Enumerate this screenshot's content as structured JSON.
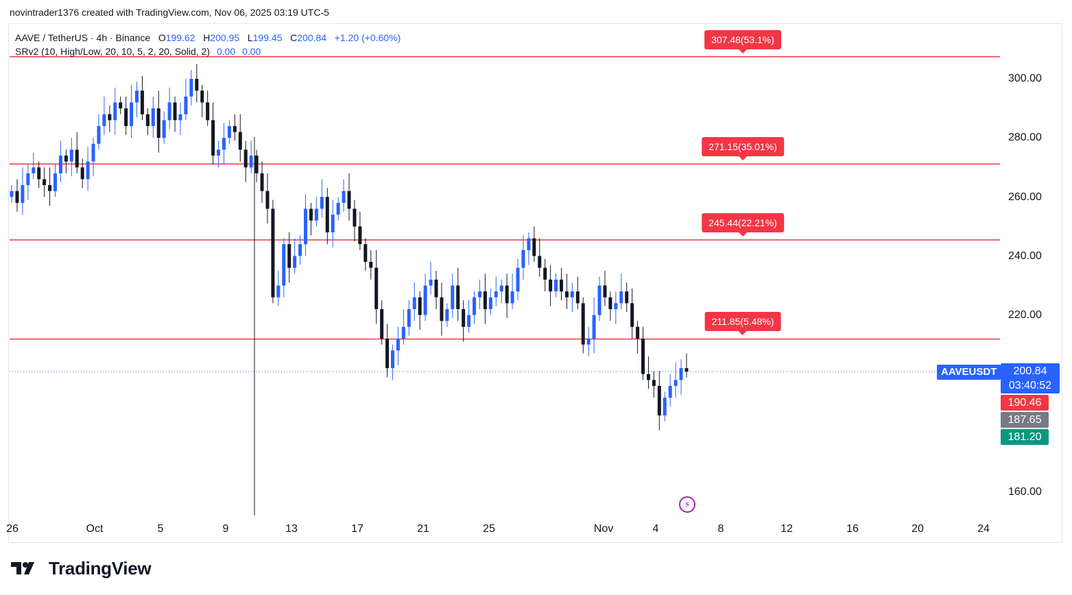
{
  "header": {
    "caption": "novintrader1376 created with TradingView.com, Nov 06, 2025 03:19 UTC-5"
  },
  "legend": {
    "symbol_line": "AAVE / TetherUS · 4h · Binance",
    "o_label": "O",
    "o_value": "199.62",
    "h_label": "H",
    "h_value": "200.95",
    "l_label": "L",
    "l_value": "199.45",
    "c_label": "C",
    "c_value": "200.84",
    "change": "+1.20 (+0.60%)",
    "indicator": "SRv2 (10, High/Low, 20, 10, 5, 2, 20, Solid, 2)",
    "indicator_v1": "0.00",
    "indicator_v2": "0.00"
  },
  "levels": [
    {
      "price": 307.48,
      "label": "307.48(53.1%)"
    },
    {
      "price": 271.15,
      "label": "271.15(35.01%)"
    },
    {
      "price": 245.44,
      "label": "245.44(22.21%)"
    },
    {
      "price": 211.85,
      "label": "211.85(5.48%)"
    }
  ],
  "price_axis": {
    "ticks": [
      "300.00",
      "280.00",
      "260.00",
      "240.00",
      "220.00",
      "160.00"
    ],
    "symbol_tag": "AAVEUSDT",
    "last_price": "200.84",
    "countdown": "03:40:52",
    "tag_red": "190.46",
    "tag_gray": "187.65",
    "tag_green": "181.20"
  },
  "time_axis": {
    "labels": [
      "26",
      "Oct",
      "5",
      "9",
      "13",
      "17",
      "21",
      "25",
      "Nov",
      "4",
      "8",
      "12",
      "16",
      "20",
      "24"
    ]
  },
  "icons": {
    "lightning": "lightning-icon",
    "brand_logo": "tradingview-logo-icon"
  },
  "colors": {
    "up": "#2962ff",
    "down": "#131722",
    "level": "#f23645",
    "accent": "#2962ff"
  },
  "brand": {
    "name": "TradingView"
  },
  "chart_data": {
    "type": "candlestick",
    "title": "AAVE / TetherUS · 4h · Binance",
    "interval": "4h",
    "ylim": [
      150,
      315
    ],
    "y_ticks": [
      160,
      220,
      240,
      260,
      280,
      300
    ],
    "last_close": 200.84,
    "x_labels": [
      "26",
      "Oct",
      "5",
      "9",
      "13",
      "17",
      "21",
      "25",
      "Nov",
      "4",
      "8",
      "12",
      "16",
      "20",
      "24"
    ],
    "support_resistance": [
      307.48,
      271.15,
      245.44,
      211.85
    ],
    "closes_approx": [
      262,
      258,
      264,
      268,
      270,
      266,
      264,
      262,
      268,
      274,
      272,
      276,
      270,
      266,
      272,
      278,
      284,
      288,
      286,
      292,
      290,
      284,
      292,
      296,
      288,
      284,
      290,
      280,
      286,
      292,
      286,
      288,
      294,
      300,
      296,
      292,
      286,
      274,
      276,
      280,
      284,
      282,
      276,
      270,
      274,
      268,
      262,
      256,
      226,
      230,
      244,
      236,
      240,
      244,
      256,
      252,
      256,
      260,
      248,
      254,
      258,
      262,
      256,
      250,
      244,
      238,
      236,
      222,
      212,
      202,
      208,
      212,
      216,
      222,
      226,
      220,
      230,
      232,
      226,
      218,
      222,
      230,
      222,
      216,
      220,
      226,
      228,
      222,
      226,
      228,
      230,
      224,
      228,
      236,
      242,
      246,
      240,
      236,
      232,
      228,
      232,
      228,
      226,
      228,
      224,
      210,
      212,
      220,
      230,
      226,
      222,
      224,
      228,
      224,
      216,
      212,
      200,
      198,
      196,
      186,
      192,
      196,
      198,
      202,
      200.84
    ]
  }
}
